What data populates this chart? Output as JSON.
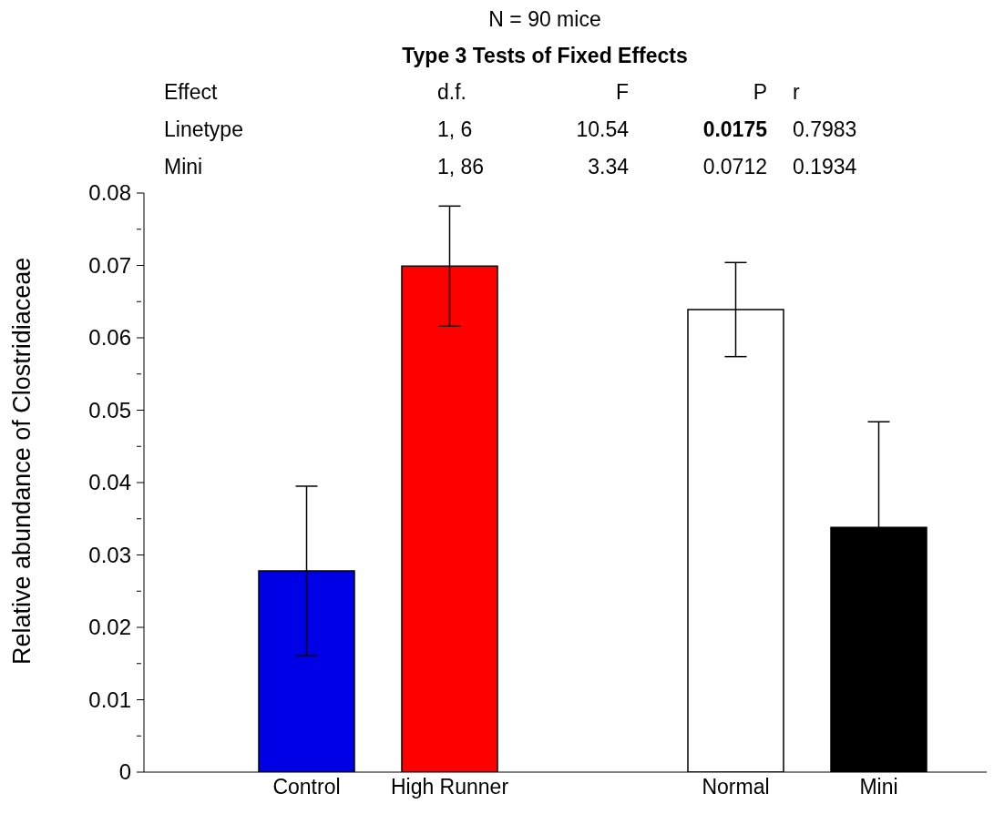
{
  "chart_data": {
    "type": "bar",
    "title": "N = 90 mice",
    "subtitle": "Type 3 Tests of Fixed Effects",
    "ylabel": "Relative abundance of Clostridiaceae",
    "categories": [
      "Control",
      "High Runner",
      null,
      "Normal",
      "Mini"
    ],
    "values": [
      0.0278,
      0.0699,
      null,
      0.0639,
      0.0338
    ],
    "colors": [
      "#0000e6",
      "#ff0000",
      "#ffffff",
      "#ffffff",
      "#000000"
    ],
    "errors": [
      0.0117,
      0.0083,
      null,
      0.0065,
      0.0146
    ],
    "ylim": [
      0,
      0.08
    ],
    "yticks": [
      0,
      {
        "value": 0.005,
        "label": null
      },
      0.01,
      {
        "value": 0.015,
        "label": null
      },
      0.02,
      {
        "value": 0.025,
        "label": null
      },
      0.03,
      {
        "value": 0.035,
        "label": null
      },
      0.04,
      {
        "value": 0.045,
        "label": null
      },
      0.05,
      {
        "value": 0.055,
        "label": null
      },
      0.06,
      {
        "value": 0.065,
        "label": null
      },
      0.07,
      {
        "value": 0.075,
        "label": null
      },
      0.08
    ],
    "grid": false,
    "legend": false,
    "annotations": [
      "Effect",
      "d.f.",
      "F",
      "P",
      "r",
      "Linetype",
      "1, 6",
      "10.54",
      "0.0175",
      "0.7983",
      "Mini",
      "1, 86",
      "3.34",
      "0.0712",
      "0.1934"
    ]
  }
}
